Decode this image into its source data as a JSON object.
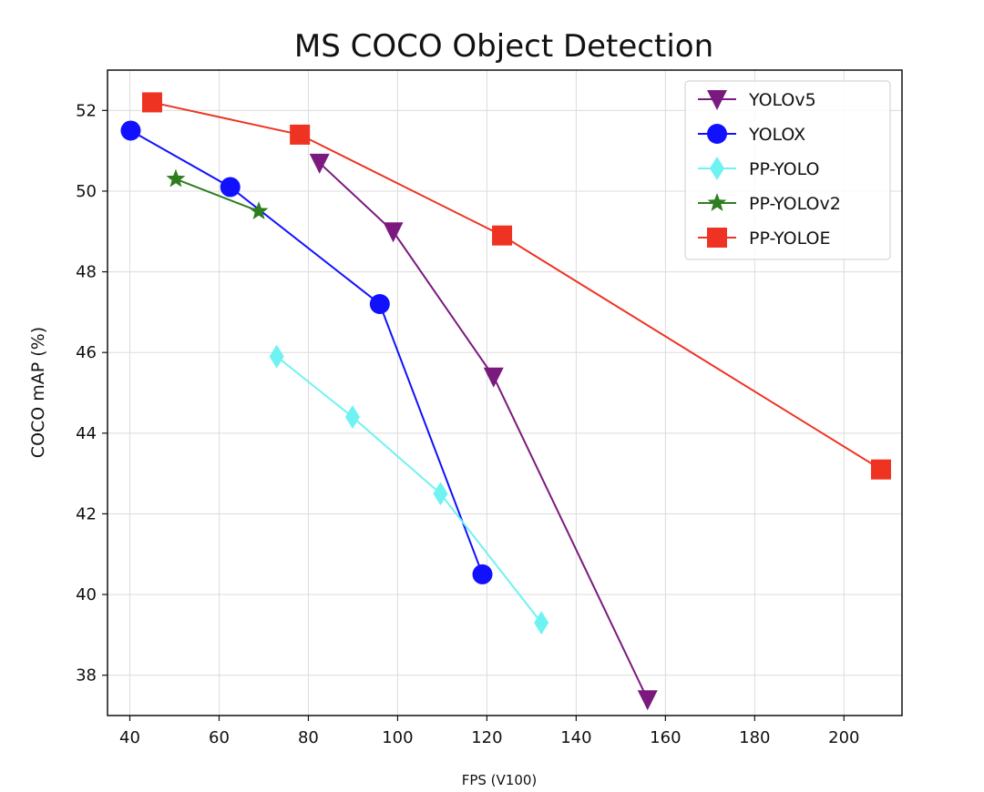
{
  "chart_data": {
    "type": "line",
    "title": "MS COCO Object Detection",
    "xlabel": "FPS (V100)",
    "ylabel": "COCO mAP (%)",
    "xlim": [
      35,
      213
    ],
    "ylim": [
      37.0,
      53.0
    ],
    "xticks": [
      40,
      60,
      80,
      100,
      120,
      140,
      160,
      180,
      200
    ],
    "yticks": [
      38,
      40,
      42,
      44,
      46,
      48,
      50,
      52
    ],
    "grid": true,
    "legend_position": "top-right",
    "series": [
      {
        "name": "YOLOv5",
        "color": "#7b1a7e",
        "marker": "triangle-down",
        "x": [
          82.5,
          99.0,
          121.5,
          156.0
        ],
        "y": [
          50.7,
          49.0,
          45.4,
          37.4
        ]
      },
      {
        "name": "YOLOX",
        "color": "#1111ff",
        "marker": "circle",
        "x": [
          40.2,
          62.5,
          96.0,
          119.0
        ],
        "y": [
          51.5,
          50.1,
          47.2,
          40.5
        ]
      },
      {
        "name": "PP-YOLO",
        "color": "#6ef2f2",
        "marker": "diamond",
        "x": [
          72.9,
          89.9,
          109.6,
          132.2
        ],
        "y": [
          45.9,
          44.4,
          42.5,
          39.3
        ]
      },
      {
        "name": "PP-YOLOv2",
        "color": "#2e7d1f",
        "marker": "star",
        "x": [
          50.3,
          68.9
        ],
        "y": [
          50.3,
          49.5
        ]
      },
      {
        "name": "PP-YOLOE",
        "color": "#ee3322",
        "marker": "square",
        "x": [
          45.0,
          78.1,
          123.4,
          208.3
        ],
        "y": [
          52.2,
          51.4,
          48.9,
          43.1
        ]
      }
    ]
  }
}
